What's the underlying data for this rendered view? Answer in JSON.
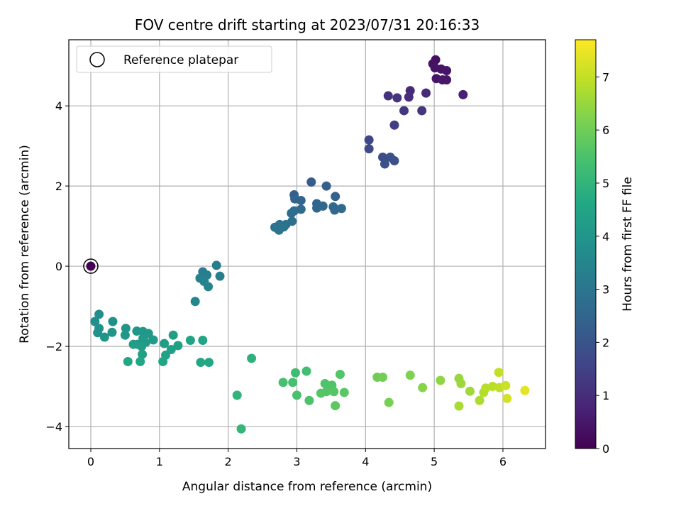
{
  "chart_data": {
    "type": "scatter",
    "title": "FOV centre drift starting at 2023/07/31 20:16:33",
    "xlabel": "Angular distance from reference (arcmin)",
    "ylabel": "Rotation from reference (arcmin)",
    "xlim": [
      -0.32,
      6.62
    ],
    "ylim": [
      -4.55,
      5.65
    ],
    "xticks": [
      0,
      1,
      2,
      3,
      4,
      5,
      6
    ],
    "yticks": [
      -4,
      -2,
      0,
      2,
      4
    ],
    "grid": true,
    "colormap": "viridis",
    "colorbar": {
      "label": "Hours from first FF file",
      "range": [
        0,
        7.7
      ],
      "ticks": [
        0,
        1,
        2,
        3,
        4,
        5,
        6,
        7
      ]
    },
    "legend": {
      "placement": "top-left",
      "entries": [
        {
          "label": "Reference platepar",
          "marker": "open-circle"
        }
      ]
    },
    "reference_point": {
      "x": 0,
      "y": 0,
      "t": 0
    },
    "points": [
      {
        "x": 5.02,
        "y": 5.15,
        "t": 0.35
      },
      {
        "x": 4.98,
        "y": 5.05,
        "t": 0.35
      },
      {
        "x": 5.01,
        "y": 4.95,
        "t": 0.4
      },
      {
        "x": 5.1,
        "y": 4.92,
        "t": 0.4
      },
      {
        "x": 5.18,
        "y": 4.88,
        "t": 0.45
      },
      {
        "x": 5.03,
        "y": 4.68,
        "t": 0.45
      },
      {
        "x": 5.12,
        "y": 4.65,
        "t": 0.5
      },
      {
        "x": 5.18,
        "y": 4.65,
        "t": 0.5
      },
      {
        "x": 5.42,
        "y": 4.28,
        "t": 0.7
      },
      {
        "x": 4.65,
        "y": 4.38,
        "t": 0.9
      },
      {
        "x": 4.88,
        "y": 4.32,
        "t": 0.95
      },
      {
        "x": 4.63,
        "y": 4.22,
        "t": 1.0
      },
      {
        "x": 4.33,
        "y": 4.25,
        "t": 1.1
      },
      {
        "x": 4.46,
        "y": 4.2,
        "t": 1.15
      },
      {
        "x": 4.56,
        "y": 3.88,
        "t": 1.2
      },
      {
        "x": 4.82,
        "y": 3.88,
        "t": 1.2
      },
      {
        "x": 4.42,
        "y": 3.52,
        "t": 1.4
      },
      {
        "x": 4.05,
        "y": 3.15,
        "t": 1.6
      },
      {
        "x": 4.05,
        "y": 2.93,
        "t": 1.7
      },
      {
        "x": 4.25,
        "y": 2.72,
        "t": 1.8
      },
      {
        "x": 4.36,
        "y": 2.72,
        "t": 1.85
      },
      {
        "x": 4.42,
        "y": 2.63,
        "t": 1.9
      },
      {
        "x": 4.28,
        "y": 2.55,
        "t": 1.9
      },
      {
        "x": 3.21,
        "y": 2.1,
        "t": 2.2
      },
      {
        "x": 3.43,
        "y": 2.0,
        "t": 2.3
      },
      {
        "x": 2.96,
        "y": 1.78,
        "t": 2.4
      },
      {
        "x": 3.56,
        "y": 1.74,
        "t": 2.4
      },
      {
        "x": 2.97,
        "y": 1.68,
        "t": 2.45
      },
      {
        "x": 3.06,
        "y": 1.64,
        "t": 2.5
      },
      {
        "x": 3.29,
        "y": 1.56,
        "t": 2.5
      },
      {
        "x": 3.38,
        "y": 1.5,
        "t": 2.55
      },
      {
        "x": 3.29,
        "y": 1.45,
        "t": 2.55
      },
      {
        "x": 3.53,
        "y": 1.48,
        "t": 2.6
      },
      {
        "x": 3.55,
        "y": 1.4,
        "t": 2.6
      },
      {
        "x": 3.65,
        "y": 1.44,
        "t": 2.65
      },
      {
        "x": 3.06,
        "y": 1.42,
        "t": 2.65
      },
      {
        "x": 2.96,
        "y": 1.38,
        "t": 2.7
      },
      {
        "x": 2.92,
        "y": 1.32,
        "t": 2.7
      },
      {
        "x": 2.93,
        "y": 1.12,
        "t": 2.8
      },
      {
        "x": 2.84,
        "y": 1.04,
        "t": 2.85
      },
      {
        "x": 2.75,
        "y": 1.04,
        "t": 2.9
      },
      {
        "x": 2.68,
        "y": 0.97,
        "t": 2.9
      },
      {
        "x": 2.81,
        "y": 0.98,
        "t": 2.95
      },
      {
        "x": 2.74,
        "y": 0.9,
        "t": 2.95
      },
      {
        "x": 1.83,
        "y": 0.02,
        "t": 3.2
      },
      {
        "x": 1.63,
        "y": -0.14,
        "t": 3.25
      },
      {
        "x": 1.69,
        "y": -0.22,
        "t": 3.3
      },
      {
        "x": 1.88,
        "y": -0.25,
        "t": 3.3
      },
      {
        "x": 1.59,
        "y": -0.3,
        "t": 3.35
      },
      {
        "x": 1.65,
        "y": -0.38,
        "t": 3.4
      },
      {
        "x": 1.71,
        "y": -0.51,
        "t": 3.45
      },
      {
        "x": 1.52,
        "y": -0.88,
        "t": 3.5
      },
      {
        "x": 0.06,
        "y": -1.38,
        "t": 3.8
      },
      {
        "x": 0.12,
        "y": -1.2,
        "t": 3.8
      },
      {
        "x": 0.32,
        "y": -1.38,
        "t": 3.85
      },
      {
        "x": 0.12,
        "y": -1.55,
        "t": 3.9
      },
      {
        "x": 0.1,
        "y": -1.66,
        "t": 3.9
      },
      {
        "x": 0.31,
        "y": -1.65,
        "t": 3.95
      },
      {
        "x": 0.51,
        "y": -1.55,
        "t": 4.0
      },
      {
        "x": 0.2,
        "y": -1.77,
        "t": 4.0
      },
      {
        "x": 0.5,
        "y": -1.72,
        "t": 4.05
      },
      {
        "x": 0.67,
        "y": -1.62,
        "t": 4.05
      },
      {
        "x": 0.76,
        "y": -1.63,
        "t": 4.1
      },
      {
        "x": 0.84,
        "y": -1.68,
        "t": 4.1
      },
      {
        "x": 0.76,
        "y": -1.8,
        "t": 4.15
      },
      {
        "x": 0.91,
        "y": -1.84,
        "t": 4.15
      },
      {
        "x": 0.8,
        "y": -1.9,
        "t": 4.2
      },
      {
        "x": 0.68,
        "y": -1.95,
        "t": 4.2
      },
      {
        "x": 0.62,
        "y": -1.95,
        "t": 4.25
      },
      {
        "x": 0.74,
        "y": -2.0,
        "t": 4.25
      },
      {
        "x": 1.07,
        "y": -1.93,
        "t": 4.3
      },
      {
        "x": 1.2,
        "y": -1.72,
        "t": 4.3
      },
      {
        "x": 1.27,
        "y": -1.98,
        "t": 4.35
      },
      {
        "x": 1.17,
        "y": -2.08,
        "t": 4.35
      },
      {
        "x": 1.09,
        "y": -2.22,
        "t": 4.4
      },
      {
        "x": 0.75,
        "y": -2.2,
        "t": 4.4
      },
      {
        "x": 1.45,
        "y": -1.85,
        "t": 4.45
      },
      {
        "x": 1.63,
        "y": -1.85,
        "t": 4.5
      },
      {
        "x": 1.05,
        "y": -2.38,
        "t": 4.5
      },
      {
        "x": 0.54,
        "y": -2.38,
        "t": 4.55
      },
      {
        "x": 0.72,
        "y": -2.38,
        "t": 4.55
      },
      {
        "x": 1.6,
        "y": -2.4,
        "t": 4.6
      },
      {
        "x": 1.72,
        "y": -2.4,
        "t": 4.6
      },
      {
        "x": 2.34,
        "y": -2.3,
        "t": 4.9
      },
      {
        "x": 2.13,
        "y": -3.22,
        "t": 5.0
      },
      {
        "x": 2.19,
        "y": -4.06,
        "t": 5.05
      },
      {
        "x": 2.98,
        "y": -2.66,
        "t": 5.3
      },
      {
        "x": 3.14,
        "y": -2.62,
        "t": 5.35
      },
      {
        "x": 2.8,
        "y": -2.9,
        "t": 5.4
      },
      {
        "x": 2.94,
        "y": -2.9,
        "t": 5.4
      },
      {
        "x": 3.0,
        "y": -3.22,
        "t": 5.45
      },
      {
        "x": 3.18,
        "y": -3.35,
        "t": 5.5
      },
      {
        "x": 3.41,
        "y": -2.93,
        "t": 5.55
      },
      {
        "x": 3.51,
        "y": -2.97,
        "t": 5.55
      },
      {
        "x": 3.63,
        "y": -2.7,
        "t": 5.6
      },
      {
        "x": 3.43,
        "y": -3.13,
        "t": 5.6
      },
      {
        "x": 3.35,
        "y": -3.17,
        "t": 5.65
      },
      {
        "x": 3.54,
        "y": -3.13,
        "t": 5.65
      },
      {
        "x": 3.69,
        "y": -3.15,
        "t": 5.7
      },
      {
        "x": 3.56,
        "y": -3.48,
        "t": 5.75
      },
      {
        "x": 4.17,
        "y": -2.77,
        "t": 6.0
      },
      {
        "x": 4.25,
        "y": -2.77,
        "t": 6.05
      },
      {
        "x": 4.34,
        "y": -3.4,
        "t": 6.1
      },
      {
        "x": 4.65,
        "y": -2.72,
        "t": 6.2
      },
      {
        "x": 4.83,
        "y": -3.03,
        "t": 6.3
      },
      {
        "x": 5.09,
        "y": -2.85,
        "t": 6.4
      },
      {
        "x": 5.36,
        "y": -2.8,
        "t": 6.5
      },
      {
        "x": 5.39,
        "y": -2.93,
        "t": 6.55
      },
      {
        "x": 5.52,
        "y": -3.12,
        "t": 6.6
      },
      {
        "x": 5.36,
        "y": -3.49,
        "t": 6.7
      },
      {
        "x": 5.66,
        "y": -3.35,
        "t": 6.75
      },
      {
        "x": 5.72,
        "y": -3.15,
        "t": 6.8
      },
      {
        "x": 5.75,
        "y": -3.04,
        "t": 6.85
      },
      {
        "x": 5.85,
        "y": -3.0,
        "t": 6.9
      },
      {
        "x": 5.95,
        "y": -3.03,
        "t": 6.95
      },
      {
        "x": 5.94,
        "y": -2.65,
        "t": 7.0
      },
      {
        "x": 6.04,
        "y": -2.98,
        "t": 7.1
      },
      {
        "x": 6.06,
        "y": -3.3,
        "t": 7.2
      },
      {
        "x": 6.32,
        "y": -3.1,
        "t": 7.4
      }
    ]
  }
}
